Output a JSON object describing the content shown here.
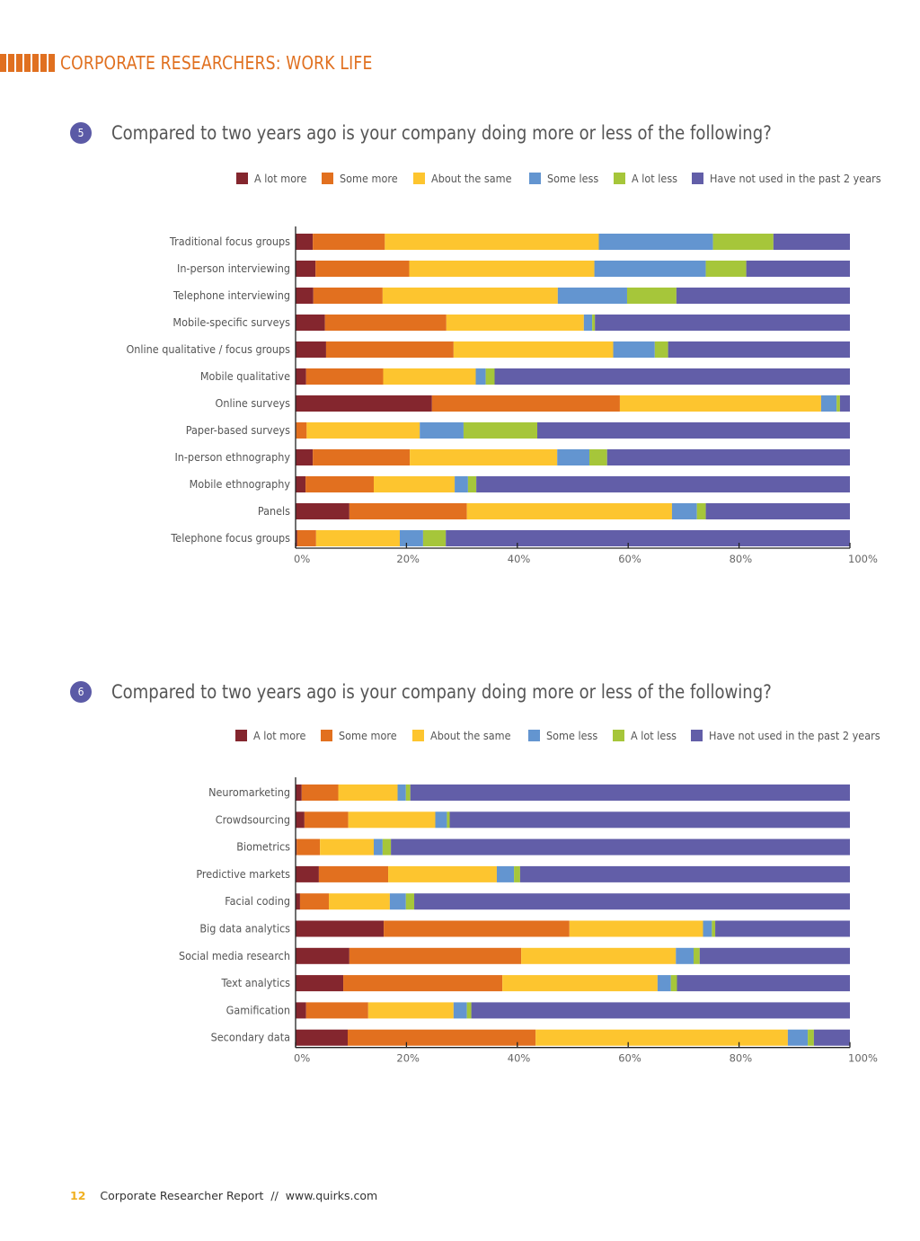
{
  "header": {
    "title": "CORPORATE RESEARCHERS: WORK LIFE"
  },
  "legend_colors": {
    "A lot more": "#84262e",
    "Some more": "#e2701f",
    "About the same": "#fdc52f",
    "Some less": "#6395d0",
    "A lot less": "#a6c63a",
    "Have not used in the past 2 years": "#625ea8"
  },
  "chart_data": [
    {
      "type": "bar",
      "orientation": "horizontal",
      "stacked": true,
      "number": "5",
      "title": "Compared to two years ago is your company doing more or less of the following?",
      "xlabel": "",
      "ylabel": "",
      "xlim": [
        0,
        100
      ],
      "xticks": [
        "0%",
        "20%",
        "40%",
        "60%",
        "80%",
        "100%"
      ],
      "legend": [
        "A lot more",
        "Some more",
        "About the same",
        "Some less",
        "A lot less",
        "Have not used in the past 2 years"
      ],
      "legend_position": "top",
      "categories": [
        "Traditional focus groups",
        "In-person interviewing",
        "Telephone interviewing",
        "Mobile-specific surveys",
        "Online qualitative / focus groups",
        "Mobile qualitative",
        "Online surveys",
        "Paper-based surveys",
        "In-person ethnography",
        "Mobile ethnography",
        "Panels",
        "Telephone focus groups"
      ],
      "series": [
        {
          "name": "A lot more",
          "values": [
            3.1,
            3.6,
            3.2,
            5.3,
            5.5,
            1.9,
            24.6,
            0.1,
            3.1,
            1.8,
            9.7,
            0.3
          ]
        },
        {
          "name": "Some more",
          "values": [
            13.0,
            16.9,
            12.5,
            21.9,
            23.0,
            13.9,
            33.9,
            1.9,
            17.5,
            12.3,
            21.2,
            3.4
          ]
        },
        {
          "name": "About the same",
          "values": [
            38.6,
            33.4,
            31.6,
            24.8,
            28.8,
            16.7,
            36.3,
            20.4,
            26.6,
            14.6,
            37.0,
            15.1
          ]
        },
        {
          "name": "Some less",
          "values": [
            20.6,
            20.1,
            12.5,
            1.5,
            7.5,
            1.8,
            2.8,
            7.9,
            5.8,
            2.4,
            4.5,
            4.2
          ]
        },
        {
          "name": "A lot less",
          "values": [
            10.9,
            7.3,
            8.9,
            0.5,
            2.4,
            1.6,
            0.6,
            13.3,
            3.2,
            1.5,
            1.6,
            4.1
          ]
        },
        {
          "name": "Have not used in the past 2 years",
          "values": [
            13.8,
            18.7,
            31.3,
            46.0,
            32.8,
            64.1,
            1.8,
            56.4,
            43.8,
            67.4,
            26.0,
            72.9
          ]
        }
      ]
    },
    {
      "type": "bar",
      "orientation": "horizontal",
      "stacked": true,
      "number": "6",
      "title": "Compared to two years ago is your company doing more or less of the following?",
      "xlabel": "",
      "ylabel": "",
      "xlim": [
        0,
        100
      ],
      "xticks": [
        "0%",
        "20%",
        "40%",
        "60%",
        "80%",
        "100%"
      ],
      "legend": [
        "A lot more",
        "Some more",
        "About the same",
        "Some less",
        "A lot less",
        "Have not used in the past 2 years"
      ],
      "legend_position": "top",
      "categories": [
        "Neuromarketing",
        "Crowdsourcing",
        "Biometrics",
        "Predictive markets",
        "Facial coding",
        "Big data analytics",
        "Social media research",
        "Text analytics",
        "Gamification",
        "Secondary data"
      ],
      "series": [
        {
          "name": "A lot more",
          "values": [
            1.1,
            1.6,
            0.2,
            4.2,
            0.8,
            15.9,
            9.7,
            8.6,
            1.9,
            9.4
          ]
        },
        {
          "name": "Some more",
          "values": [
            6.6,
            7.9,
            4.2,
            12.5,
            5.2,
            33.5,
            31.0,
            28.7,
            11.2,
            33.9
          ]
        },
        {
          "name": "About the same",
          "values": [
            10.7,
            15.7,
            9.7,
            19.6,
            11.0,
            24.1,
            27.9,
            28.0,
            15.4,
            45.5
          ]
        },
        {
          "name": "Some less",
          "values": [
            1.5,
            2.1,
            1.6,
            3.1,
            2.9,
            1.6,
            3.2,
            2.4,
            2.4,
            3.6
          ]
        },
        {
          "name": "A lot less",
          "values": [
            0.8,
            0.5,
            1.5,
            1.1,
            1.5,
            0.6,
            1.1,
            1.1,
            0.8,
            1.1
          ]
        },
        {
          "name": "Have not used in the past 2 years",
          "values": [
            79.3,
            72.2,
            82.8,
            59.5,
            78.6,
            24.3,
            27.1,
            31.2,
            68.3,
            6.5
          ]
        }
      ]
    }
  ],
  "footer": {
    "page": "12",
    "text": "Corporate Researcher Report  //  www.quirks.com"
  }
}
